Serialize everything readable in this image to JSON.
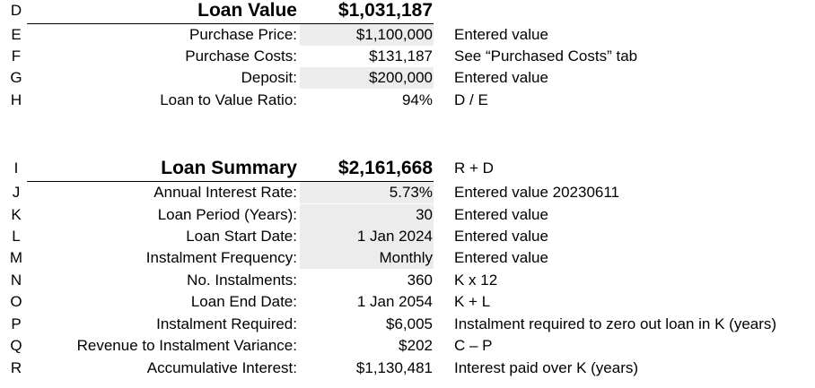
{
  "loan_value": {
    "heading": {
      "letter": "D",
      "label": "Loan Value",
      "value": "$1,031,187",
      "note": ""
    },
    "rows": [
      {
        "letter": "E",
        "label": "Purchase Price:",
        "value": "$1,100,000",
        "note": "Entered value"
      },
      {
        "letter": "F",
        "label": "Purchase Costs:",
        "value": "$131,187",
        "note": "See “Purchased Costs” tab"
      },
      {
        "letter": "G",
        "label": "Deposit:",
        "value": "$200,000",
        "note": "Entered value"
      },
      {
        "letter": "H",
        "label": "Loan to Value Ratio:",
        "value": "94%",
        "note": "D / E"
      }
    ]
  },
  "loan_summary": {
    "heading": {
      "letter": "I",
      "label": "Loan Summary",
      "value": "$2,161,668",
      "note": "R + D"
    },
    "rows": [
      {
        "letter": "J",
        "label": "Annual Interest Rate:",
        "value": "5.73%",
        "note": "Entered value 20230611"
      },
      {
        "letter": "K",
        "label": "Loan Period (Years):",
        "value": "30",
        "note": "Entered value"
      },
      {
        "letter": "L",
        "label": "Loan Start Date:",
        "value": "1 Jan 2024",
        "note": "Entered value"
      },
      {
        "letter": "M",
        "label": "Instalment Frequency:",
        "value": "Monthly",
        "note": "Entered value"
      },
      {
        "letter": "N",
        "label": "No. Instalments:",
        "value": "360",
        "note": "K x 12"
      },
      {
        "letter": "O",
        "label": "Loan End Date:",
        "value": "1 Jan 2054",
        "note": "K + L"
      },
      {
        "letter": "P",
        "label": "Instalment Required:",
        "value": "$6,005",
        "note": "Instalment required to zero out loan in K (years)"
      },
      {
        "letter": "Q",
        "label": "Revenue to Instalment Variance:",
        "value": "$202",
        "note": "C – P"
      },
      {
        "letter": "R",
        "label": "Accumulative Interest:",
        "value": "$1,130,481",
        "note": "Interest paid over K (years)"
      }
    ]
  }
}
